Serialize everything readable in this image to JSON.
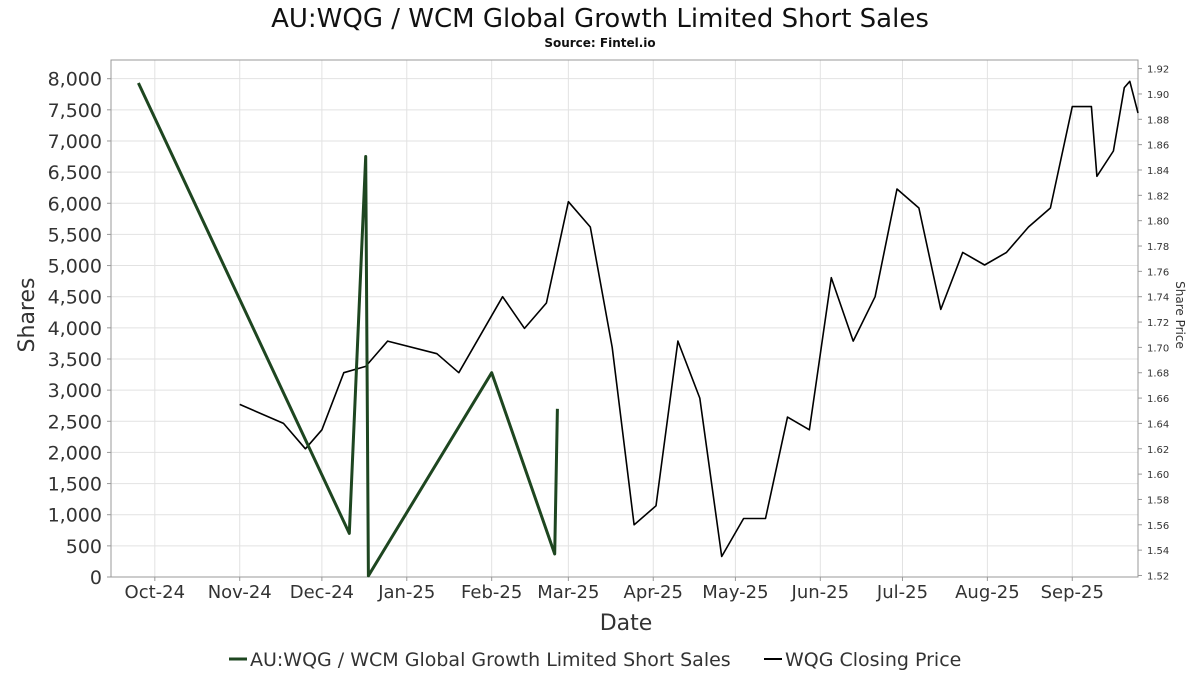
{
  "chart_data": {
    "type": "line",
    "title": "AU:WQG / WCM Global Growth Limited Short Sales",
    "subtitle": "Source: Fintel.io",
    "xlabel": "Date",
    "ylabel": "Shares",
    "y2label": "Share Price",
    "xlim": [
      "2024-09-15",
      "2025-09-25"
    ],
    "ylim": [
      0,
      8300
    ],
    "y2lim": [
      1.5188,
      1.9268
    ],
    "x_ticks": [
      {
        "date": "2024-10-01",
        "label": "Oct-24"
      },
      {
        "date": "2024-11-01",
        "label": "Nov-24"
      },
      {
        "date": "2024-12-01",
        "label": "Dec-24"
      },
      {
        "date": "2025-01-01",
        "label": "Jan-25"
      },
      {
        "date": "2025-02-01",
        "label": "Feb-25"
      },
      {
        "date": "2025-03-01",
        "label": "Mar-25"
      },
      {
        "date": "2025-04-01",
        "label": "Apr-25"
      },
      {
        "date": "2025-05-01",
        "label": "May-25"
      },
      {
        "date": "2025-06-01",
        "label": "Jun-25"
      },
      {
        "date": "2025-07-01",
        "label": "Jul-25"
      },
      {
        "date": "2025-08-01",
        "label": "Aug-25"
      },
      {
        "date": "2025-09-01",
        "label": "Sep-25"
      }
    ],
    "y_ticks": [
      {
        "value": 0,
        "label": "0"
      },
      {
        "value": 500,
        "label": "500"
      },
      {
        "value": 1000,
        "label": "1,000"
      },
      {
        "value": 1500,
        "label": "1,500"
      },
      {
        "value": 2000,
        "label": "2,000"
      },
      {
        "value": 2500,
        "label": "2,500"
      },
      {
        "value": 3000,
        "label": "3,000"
      },
      {
        "value": 3500,
        "label": "3,500"
      },
      {
        "value": 4000,
        "label": "4,000"
      },
      {
        "value": 4500,
        "label": "4,500"
      },
      {
        "value": 5000,
        "label": "5,000"
      },
      {
        "value": 5500,
        "label": "5,500"
      },
      {
        "value": 6000,
        "label": "6,000"
      },
      {
        "value": 6500,
        "label": "6,500"
      },
      {
        "value": 7000,
        "label": "7,000"
      },
      {
        "value": 7500,
        "label": "7,500"
      },
      {
        "value": 8000,
        "label": "8,000"
      }
    ],
    "y2_ticks": [
      {
        "value": 1.52,
        "label": "1.52"
      },
      {
        "value": 1.54,
        "label": "1.54"
      },
      {
        "value": 1.56,
        "label": "1.56"
      },
      {
        "value": 1.58,
        "label": "1.58"
      },
      {
        "value": 1.6,
        "label": "1.60"
      },
      {
        "value": 1.62,
        "label": "1.62"
      },
      {
        "value": 1.64,
        "label": "1.64"
      },
      {
        "value": 1.66,
        "label": "1.66"
      },
      {
        "value": 1.68,
        "label": "1.68"
      },
      {
        "value": 1.7,
        "label": "1.70"
      },
      {
        "value": 1.72,
        "label": "1.72"
      },
      {
        "value": 1.74,
        "label": "1.74"
      },
      {
        "value": 1.76,
        "label": "1.76"
      },
      {
        "value": 1.78,
        "label": "1.78"
      },
      {
        "value": 1.8,
        "label": "1.80"
      },
      {
        "value": 1.82,
        "label": "1.82"
      },
      {
        "value": 1.84,
        "label": "1.84"
      },
      {
        "value": 1.86,
        "label": "1.86"
      },
      {
        "value": 1.88,
        "label": "1.88"
      },
      {
        "value": 1.9,
        "label": "1.90"
      },
      {
        "value": 1.92,
        "label": "1.92"
      }
    ],
    "grid": true,
    "legend_position": "bottom-center",
    "series": [
      {
        "name": "AU:WQG / WCM Global Growth Limited Short Sales",
        "axis": "left",
        "color": "#1e4620",
        "points": [
          {
            "x": "2024-09-25",
            "y": 7930
          },
          {
            "x": "2024-12-11",
            "y": 700
          },
          {
            "x": "2024-12-17",
            "y": 6750
          },
          {
            "x": "2024-12-18",
            "y": 20
          },
          {
            "x": "2025-02-01",
            "y": 3280
          },
          {
            "x": "2025-02-24",
            "y": 370
          },
          {
            "x": "2025-02-25",
            "y": 2700
          }
        ]
      },
      {
        "name": "WQG Closing Price",
        "axis": "right",
        "color": "#000000",
        "points": [
          {
            "x": "2024-11-01",
            "y": 1.655
          },
          {
            "x": "2024-11-17",
            "y": 1.64
          },
          {
            "x": "2024-11-25",
            "y": 1.62
          },
          {
            "x": "2024-12-01",
            "y": 1.635
          },
          {
            "x": "2024-12-09",
            "y": 1.68
          },
          {
            "x": "2024-12-17",
            "y": 1.685
          },
          {
            "x": "2024-12-25",
            "y": 1.705
          },
          {
            "x": "2025-01-12",
            "y": 1.695
          },
          {
            "x": "2025-01-20",
            "y": 1.68
          },
          {
            "x": "2025-01-28",
            "y": 1.71
          },
          {
            "x": "2025-02-05",
            "y": 1.74
          },
          {
            "x": "2025-02-13",
            "y": 1.715
          },
          {
            "x": "2025-02-21",
            "y": 1.735
          },
          {
            "x": "2025-03-01",
            "y": 1.815
          },
          {
            "x": "2025-03-09",
            "y": 1.795
          },
          {
            "x": "2025-03-17",
            "y": 1.7
          },
          {
            "x": "2025-03-25",
            "y": 1.56
          },
          {
            "x": "2025-04-02",
            "y": 1.575
          },
          {
            "x": "2025-04-10",
            "y": 1.705
          },
          {
            "x": "2025-04-18",
            "y": 1.66
          },
          {
            "x": "2025-04-26",
            "y": 1.535
          },
          {
            "x": "2025-05-04",
            "y": 1.565
          },
          {
            "x": "2025-05-12",
            "y": 1.565
          },
          {
            "x": "2025-05-20",
            "y": 1.645
          },
          {
            "x": "2025-05-28",
            "y": 1.635
          },
          {
            "x": "2025-06-05",
            "y": 1.755
          },
          {
            "x": "2025-06-13",
            "y": 1.705
          },
          {
            "x": "2025-06-21",
            "y": 1.74
          },
          {
            "x": "2025-06-29",
            "y": 1.825
          },
          {
            "x": "2025-07-07",
            "y": 1.81
          },
          {
            "x": "2025-07-15",
            "y": 1.73
          },
          {
            "x": "2025-07-23",
            "y": 1.775
          },
          {
            "x": "2025-07-31",
            "y": 1.765
          },
          {
            "x": "2025-08-08",
            "y": 1.775
          },
          {
            "x": "2025-08-16",
            "y": 1.795
          },
          {
            "x": "2025-08-24",
            "y": 1.81
          },
          {
            "x": "2025-09-01",
            "y": 1.89
          },
          {
            "x": "2025-09-08",
            "y": 1.89
          },
          {
            "x": "2025-09-10",
            "y": 1.835
          },
          {
            "x": "2025-09-16",
            "y": 1.855
          },
          {
            "x": "2025-09-20",
            "y": 1.905
          },
          {
            "x": "2025-09-22",
            "y": 1.91
          },
          {
            "x": "2025-09-25",
            "y": 1.885
          }
        ]
      }
    ]
  }
}
